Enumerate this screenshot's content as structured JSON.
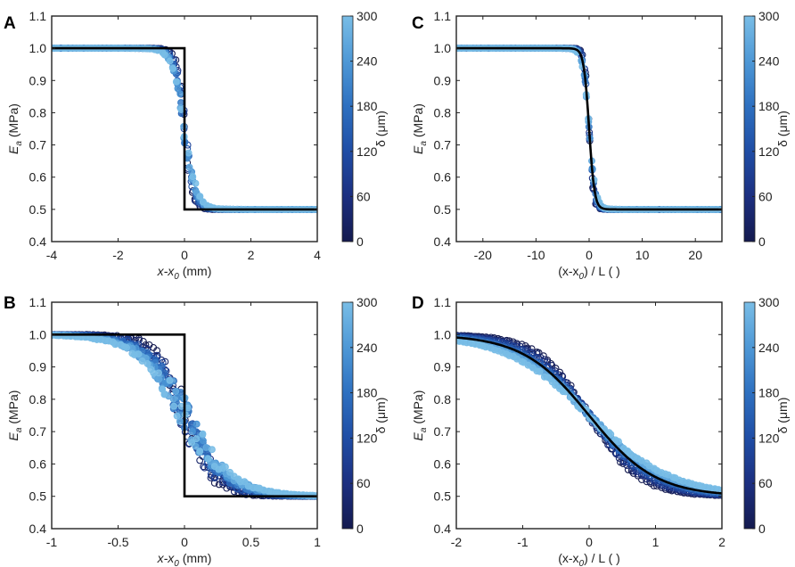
{
  "colors": {
    "colormap": [
      "#141a4f",
      "#1c2f80",
      "#1f4da5",
      "#2e70c0",
      "#4e98d6",
      "#79bde6"
    ],
    "step_line": "#000000",
    "axis": "#222222"
  },
  "chart_data": [
    {
      "panel": "A",
      "type": "scatter",
      "xlabel": {
        "main": "x-x",
        "sub": "0",
        "suffix": " (mm)"
      },
      "ylabel": {
        "main": "E",
        "sub": "a",
        "suffix": " (MPa)"
      },
      "xlim": [
        -4,
        4
      ],
      "ylim": [
        0.4,
        1.1
      ],
      "xticks": [
        -4,
        -2,
        0,
        2,
        4
      ],
      "yticks": [
        0.4,
        0.5,
        0.6,
        0.7,
        0.8,
        0.9,
        1.0,
        1.1
      ],
      "ytick_labels": [
        "0.4",
        "0.5",
        "0.6",
        "0.7",
        "0.8",
        "0.9",
        "1.0",
        "1.1"
      ],
      "xtick_labels": [
        "-4",
        "-2",
        "0",
        "2",
        "4"
      ],
      "reference_line": {
        "name": "step",
        "x": [
          -4,
          0,
          0,
          4
        ],
        "y": [
          1.0,
          1.0,
          0.5,
          0.5
        ]
      },
      "scatter_model": {
        "kind": "tanh",
        "width": 0.3,
        "spread": 0.2
      },
      "colorbar": {
        "label": "δ (μm)",
        "min": 0,
        "max": 300,
        "ticks": [
          0,
          60,
          120,
          180,
          240,
          300
        ],
        "tick_labels": [
          "0",
          "60",
          "120",
          "180",
          "240",
          "300"
        ]
      }
    },
    {
      "panel": "B",
      "type": "scatter",
      "xlabel": {
        "main": "x-x",
        "sub": "0",
        "suffix": " (mm)"
      },
      "ylabel": {
        "main": "E",
        "sub": "a",
        "suffix": " (MPa)"
      },
      "xlim": [
        -1,
        1
      ],
      "ylim": [
        0.4,
        1.1
      ],
      "xticks": [
        -1,
        -0.5,
        0,
        0.5,
        1
      ],
      "xtick_labels": [
        "-1",
        "-0.5",
        "0",
        "0.5",
        "1"
      ],
      "yticks": [
        0.4,
        0.5,
        0.6,
        0.7,
        0.8,
        0.9,
        1.0,
        1.1
      ],
      "ytick_labels": [
        "0.4",
        "0.5",
        "0.6",
        "0.7",
        "0.8",
        "0.9",
        "1.0",
        "1.1"
      ],
      "reference_line": {
        "name": "step",
        "x": [
          -1,
          0,
          0,
          1
        ],
        "y": [
          1.0,
          1.0,
          0.5,
          0.5
        ]
      },
      "scatter_model": {
        "kind": "tanh",
        "width": 0.3,
        "spread": 0.25
      },
      "colorbar": {
        "label": "δ (μm)",
        "min": 0,
        "max": 300,
        "ticks": [
          0,
          60,
          120,
          180,
          240,
          300
        ],
        "tick_labels": [
          "0",
          "60",
          "120",
          "180",
          "240",
          "300"
        ]
      }
    },
    {
      "panel": "C",
      "type": "scatter",
      "xlabel": {
        "main": "(x-x",
        "sub": "0",
        "suffix": ") / L ( )"
      },
      "ylabel": {
        "main": "E",
        "sub": "a",
        "suffix": " (MPa)"
      },
      "xlim": [
        -25,
        25
      ],
      "ylim": [
        0.4,
        1.1
      ],
      "xticks": [
        -20,
        -10,
        0,
        10,
        20
      ],
      "xtick_labels": [
        "-20",
        "-10",
        "0",
        "10",
        "20"
      ],
      "yticks": [
        0.4,
        0.5,
        0.6,
        0.7,
        0.8,
        0.9,
        1.0,
        1.1
      ],
      "ytick_labels": [
        "0.4",
        "0.5",
        "0.6",
        "0.7",
        "0.8",
        "0.9",
        "1.0",
        "1.1"
      ],
      "reference_line": {
        "name": "fit",
        "kind": "tanh",
        "width": 1
      },
      "scatter_model": {
        "kind": "tanh",
        "width": 1,
        "spread": 0.03
      },
      "colorbar": {
        "label": "δ (μm)",
        "min": 0,
        "max": 300,
        "ticks": [
          0,
          60,
          120,
          180,
          240,
          300
        ],
        "tick_labels": [
          "0",
          "60",
          "120",
          "180",
          "240",
          "300"
        ]
      }
    },
    {
      "panel": "D",
      "type": "scatter",
      "xlabel": {
        "main": "(x-x",
        "sub": "0",
        "suffix": ") / L ( )"
      },
      "ylabel": {
        "main": "E",
        "sub": "a",
        "suffix": " (MPa)"
      },
      "xlim": [
        -2,
        2
      ],
      "ylim": [
        0.4,
        1.1
      ],
      "xticks": [
        -2,
        -1,
        0,
        1,
        2
      ],
      "xtick_labels": [
        "-2",
        "-1",
        "0",
        "1",
        "2"
      ],
      "yticks": [
        0.4,
        0.5,
        0.6,
        0.7,
        0.8,
        0.9,
        1.0,
        1.1
      ],
      "ytick_labels": [
        "0.4",
        "0.5",
        "0.6",
        "0.7",
        "0.8",
        "0.9",
        "1.0",
        "1.1"
      ],
      "reference_line": {
        "name": "fit",
        "kind": "tanh",
        "width": 1
      },
      "scatter_model": {
        "kind": "tanh",
        "width": 1,
        "spread": 0.04
      },
      "colorbar": {
        "label": "δ (μm)",
        "min": 0,
        "max": 300,
        "ticks": [
          0,
          60,
          120,
          180,
          240,
          300
        ],
        "tick_labels": [
          "0",
          "60",
          "120",
          "180",
          "240",
          "300"
        ]
      }
    }
  ]
}
